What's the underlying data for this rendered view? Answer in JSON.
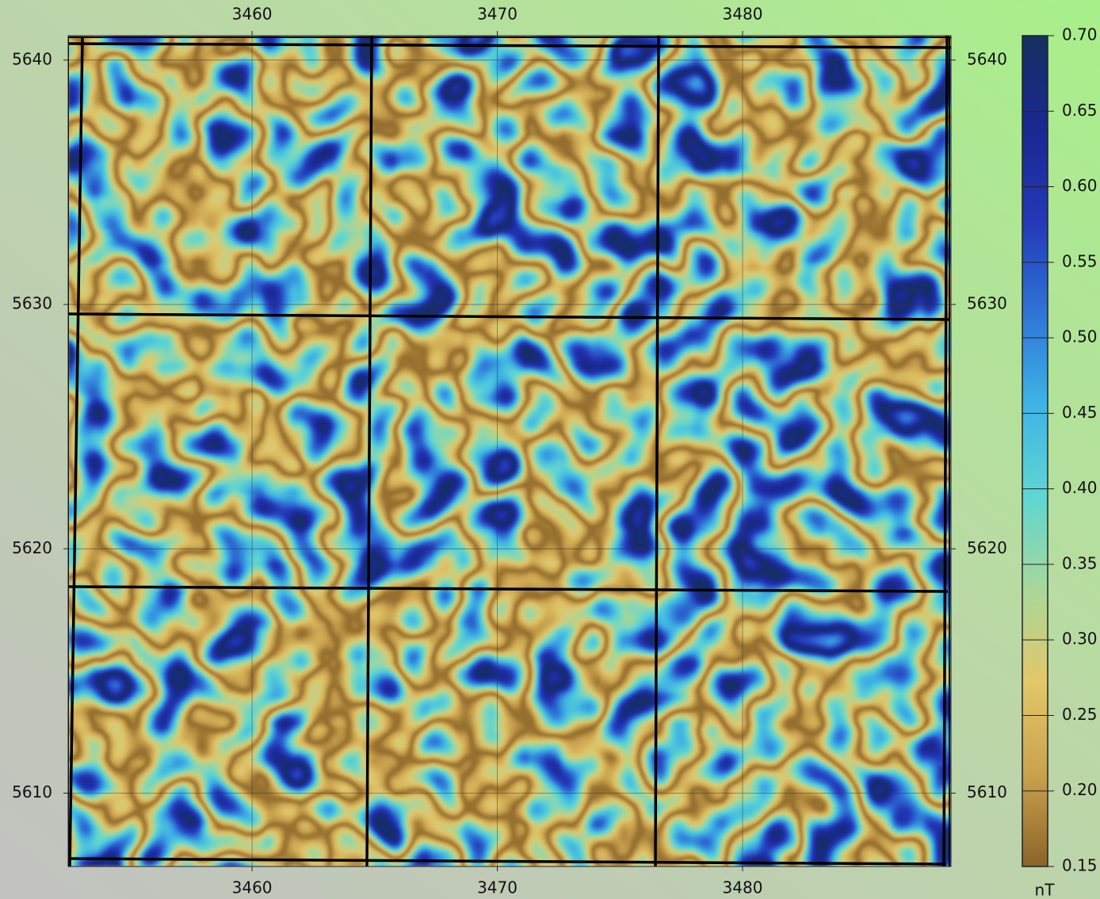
{
  "chart_data": {
    "type": "heatmap",
    "xlim": [
      3452.5,
      3488.5
    ],
    "ylim": [
      5607,
      5641
    ],
    "xticks": [
      3460,
      3470,
      3480
    ],
    "yticks": [
      5610,
      5620,
      5630,
      5640
    ],
    "grid": true,
    "colormap": [
      "#8a6428",
      "#c9a24e",
      "#e3c76a",
      "#a9d79a",
      "#5fd6d2",
      "#3fb4e6",
      "#2f74d6",
      "#2438b8",
      "#1a2890",
      "#143060"
    ],
    "colorbar": {
      "lim": [
        0.15,
        0.7
      ],
      "ticks": [
        {
          "value": 0.15,
          "label": "0.15"
        },
        {
          "value": 0.2,
          "label": "0.20"
        },
        {
          "value": 0.25,
          "label": "0.25"
        },
        {
          "value": 0.3,
          "label": "0.30"
        },
        {
          "value": 0.35,
          "label": "0.35"
        },
        {
          "value": 0.4,
          "label": "0.40"
        },
        {
          "value": 0.45,
          "label": "0.45"
        },
        {
          "value": 0.5,
          "label": "0.50"
        },
        {
          "value": 0.55,
          "label": "0.55"
        },
        {
          "value": 0.6,
          "label": "0.60"
        },
        {
          "value": 0.65,
          "label": "0.65"
        },
        {
          "value": 0.7,
          "label": "0.70"
        }
      ],
      "label": "nT"
    }
  }
}
